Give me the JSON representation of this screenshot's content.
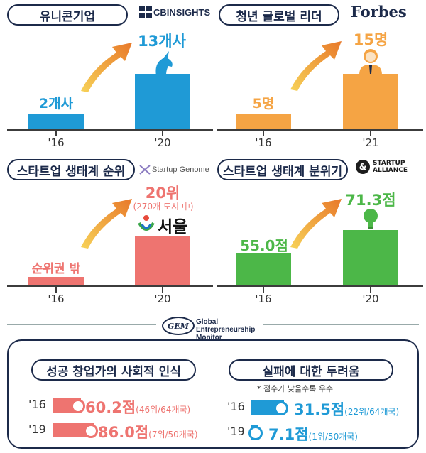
{
  "chart_data": [
    {
      "type": "bar",
      "title": "유니콘기업",
      "source": "CBINSIGHTS",
      "categories": [
        "'16",
        "'20"
      ],
      "values": [
        2,
        13
      ],
      "value_labels": [
        "2개사",
        "13개사"
      ],
      "color": "#1f9ad6"
    },
    {
      "type": "bar",
      "title": "청년 글로벌 리더",
      "source": "Forbes",
      "categories": [
        "'16",
        "'21"
      ],
      "values": [
        5,
        15
      ],
      "value_labels": [
        "5명",
        "15명"
      ],
      "color": "#f5a444"
    },
    {
      "type": "bar",
      "title": "스타트업 생태계 순위",
      "source": "Startup Genome",
      "categories": [
        "'16",
        "'20"
      ],
      "values": [
        null,
        20
      ],
      "value_labels": [
        "순위권 밖",
        "20위"
      ],
      "sub_label": "(270개 도시 中)",
      "city": "서울",
      "color": "#ee7470"
    },
    {
      "type": "bar",
      "title": "스타트업 생태계 분위기",
      "source_line1": "STARTUP",
      "source_line2": "ALLIANCE",
      "categories": [
        "'16",
        "'20"
      ],
      "values": [
        55.0,
        71.3
      ],
      "value_labels": [
        "55.0점",
        "71.3점"
      ],
      "color": "#4cb748"
    },
    {
      "type": "bar",
      "orientation": "horizontal",
      "title": "성공 창업가의 사회적 인식",
      "categories": [
        "'16",
        "'19"
      ],
      "values": [
        60.2,
        86.0
      ],
      "value_labels": [
        "60.2점",
        "86.0점"
      ],
      "rank_labels": [
        "(46위/64개국)",
        "(7위/50개국)"
      ],
      "color": "#ee7470"
    },
    {
      "type": "bar",
      "orientation": "horizontal",
      "title": "실패에 대한 두려움",
      "note": "* 점수가 낮을수록 우수",
      "categories": [
        "'16",
        "'19"
      ],
      "values": [
        31.5,
        7.1
      ],
      "value_labels": [
        "31.5점",
        "7.1점"
      ],
      "rank_labels": [
        "(22위/64개국)",
        "(1위/50개국)"
      ],
      "color": "#1f9ad6"
    }
  ],
  "gem": {
    "logo": "GEM",
    "line1": "Global",
    "line2": "Entrepreneurship",
    "line3": "Monitor"
  }
}
